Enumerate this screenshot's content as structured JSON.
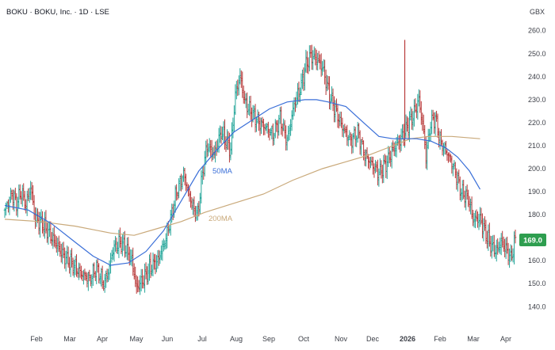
{
  "chart_data": {
    "type": "ohlc",
    "title": "BOKU · BOKU, Inc. · 1D · LSE",
    "currency": "GBX",
    "y_ticks": [
      140,
      150,
      160,
      170,
      180,
      190,
      200,
      210,
      220,
      230,
      240,
      250,
      260
    ],
    "ylim": [
      137,
      263
    ],
    "x_labels": [
      "Feb",
      "Mar",
      "Apr",
      "May",
      "Jun",
      "Jul",
      "Aug",
      "Sep",
      "Oct",
      "Nov",
      "Dec",
      "2026",
      "Feb",
      "Mar",
      "Apr"
    ],
    "last_price": "169.0",
    "grid": false,
    "colors": {
      "up": "#26a69a",
      "down": "#b83a3a",
      "ma50": "#3a6fd8",
      "ma200": "#c9a97a",
      "last_badge": "#2e9e4f"
    },
    "bar_anchors": [
      [
        0,
        182
      ],
      [
        6,
        189
      ],
      [
        10,
        185
      ],
      [
        14,
        190
      ],
      [
        18,
        184
      ],
      [
        22,
        192
      ],
      [
        26,
        178
      ],
      [
        32,
        176
      ],
      [
        40,
        170
      ],
      [
        50,
        162
      ],
      [
        58,
        158
      ],
      [
        66,
        154
      ],
      [
        72,
        152
      ],
      [
        78,
        157
      ],
      [
        84,
        150
      ],
      [
        88,
        155
      ],
      [
        92,
        165
      ],
      [
        98,
        168
      ],
      [
        102,
        166
      ],
      [
        108,
        160
      ],
      [
        112,
        148
      ],
      [
        118,
        152
      ],
      [
        124,
        157
      ],
      [
        130,
        160
      ],
      [
        136,
        168
      ],
      [
        140,
        176
      ],
      [
        146,
        190
      ],
      [
        152,
        198
      ],
      [
        156,
        190
      ],
      [
        160,
        183
      ],
      [
        164,
        180
      ],
      [
        168,
        198
      ],
      [
        172,
        210
      ],
      [
        178,
        206
      ],
      [
        184,
        216
      ],
      [
        188,
        212
      ],
      [
        192,
        208
      ],
      [
        196,
        232
      ],
      [
        200,
        240
      ],
      [
        204,
        229
      ],
      [
        210,
        224
      ],
      [
        216,
        220
      ],
      [
        222,
        218
      ],
      [
        228,
        215
      ],
      [
        234,
        222
      ],
      [
        240,
        212
      ],
      [
        246,
        228
      ],
      [
        252,
        236
      ],
      [
        256,
        245
      ],
      [
        260,
        249
      ],
      [
        266,
        247
      ],
      [
        270,
        244
      ],
      [
        276,
        232
      ],
      [
        282,
        224
      ],
      [
        288,
        217
      ],
      [
        294,
        212
      ],
      [
        300,
        216
      ],
      [
        306,
        206
      ],
      [
        312,
        202
      ],
      [
        318,
        198
      ],
      [
        324,
        202
      ],
      [
        330,
        208
      ],
      [
        336,
        212
      ],
      [
        342,
        218
      ],
      [
        348,
        224
      ],
      [
        352,
        230
      ],
      [
        356,
        216
      ],
      [
        358,
        205
      ],
      [
        362,
        220
      ],
      [
        366,
        222
      ],
      [
        370,
        212
      ],
      [
        376,
        207
      ],
      [
        382,
        200
      ],
      [
        388,
        190
      ],
      [
        394,
        187
      ],
      [
        398,
        178
      ],
      [
        404,
        178
      ],
      [
        410,
        170
      ],
      [
        414,
        166
      ],
      [
        418,
        164
      ],
      [
        422,
        168
      ],
      [
        426,
        165
      ],
      [
        430,
        161
      ],
      [
        434,
        169
      ]
    ],
    "wicks": [
      [
        340,
        210,
        256
      ]
    ],
    "ma50": [
      [
        0,
        184
      ],
      [
        20,
        182
      ],
      [
        40,
        176
      ],
      [
        60,
        168
      ],
      [
        75,
        162
      ],
      [
        90,
        158
      ],
      [
        105,
        159
      ],
      [
        120,
        164
      ],
      [
        135,
        173
      ],
      [
        150,
        186
      ],
      [
        165,
        199
      ],
      [
        180,
        208
      ],
      [
        195,
        216
      ],
      [
        210,
        221
      ],
      [
        225,
        226
      ],
      [
        240,
        229
      ],
      [
        255,
        230
      ],
      [
        265,
        230
      ],
      [
        275,
        229
      ],
      [
        290,
        227
      ],
      [
        305,
        220
      ],
      [
        318,
        214
      ],
      [
        330,
        213
      ],
      [
        340,
        213
      ],
      [
        350,
        213
      ],
      [
        362,
        212
      ],
      [
        375,
        209
      ],
      [
        385,
        205
      ],
      [
        395,
        199
      ],
      [
        404,
        191
      ]
    ],
    "ma200": [
      [
        0,
        178
      ],
      [
        30,
        177
      ],
      [
        60,
        175
      ],
      [
        90,
        172
      ],
      [
        110,
        171
      ],
      [
        130,
        174
      ],
      [
        150,
        177
      ],
      [
        170,
        181
      ],
      [
        195,
        185
      ],
      [
        220,
        189
      ],
      [
        245,
        195
      ],
      [
        270,
        200
      ],
      [
        290,
        203
      ],
      [
        310,
        206
      ],
      [
        330,
        210
      ],
      [
        345,
        213
      ],
      [
        360,
        214
      ],
      [
        380,
        214
      ],
      [
        404,
        213
      ]
    ],
    "annotations": [
      "50MA",
      "200MA"
    ]
  }
}
